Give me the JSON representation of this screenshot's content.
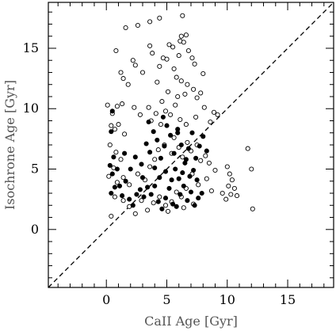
{
  "chart_data": {
    "type": "scatter",
    "xlabel": "CaII Age [Gyr]",
    "ylabel": "Isochrone Age [Gyr]",
    "xlim": [
      -4.8,
      18.8
    ],
    "ylim": [
      -4.8,
      18.8
    ],
    "xticks": [
      0,
      5,
      10,
      15
    ],
    "yticks": [
      0,
      5,
      10,
      15
    ],
    "minor_tick_step": 1,
    "grid": false,
    "legend": "none",
    "reference_line": {
      "style": "dashed",
      "from": [
        -4.8,
        -4.8
      ],
      "to": [
        18.8,
        18.8
      ]
    },
    "series": [
      {
        "marker": "open-circle",
        "points": [
          [
            1.6,
            16.7
          ],
          [
            2.6,
            16.9
          ],
          [
            3.6,
            17.2
          ],
          [
            4.4,
            17.5
          ],
          [
            6.3,
            17.7
          ],
          [
            0.8,
            14.8
          ],
          [
            1.2,
            13.0
          ],
          [
            1.4,
            12.5
          ],
          [
            1.8,
            12.0
          ],
          [
            2.2,
            14.0
          ],
          [
            2.4,
            13.6
          ],
          [
            3.0,
            13.0
          ],
          [
            3.6,
            15.2
          ],
          [
            3.8,
            14.6
          ],
          [
            4.2,
            12.2
          ],
          [
            4.4,
            13.5
          ],
          [
            4.7,
            14.2
          ],
          [
            5.0,
            14.1
          ],
          [
            5.2,
            15.3
          ],
          [
            5.6,
            13.3
          ],
          [
            5.8,
            12.6
          ],
          [
            6.0,
            14.4
          ],
          [
            6.1,
            15.6
          ],
          [
            6.2,
            16.0
          ],
          [
            6.4,
            15.5
          ],
          [
            6.6,
            16.1
          ],
          [
            6.8,
            14.8
          ],
          [
            7.1,
            14.2
          ],
          [
            6.2,
            12.3
          ],
          [
            6.7,
            12.0
          ],
          [
            7.2,
            11.6
          ],
          [
            7.5,
            10.9
          ],
          [
            7.8,
            11.3
          ],
          [
            8.0,
            12.9
          ],
          [
            7.3,
            13.7
          ],
          [
            5.5,
            15.1
          ],
          [
            4.6,
            10.6
          ],
          [
            5.1,
            11.4
          ],
          [
            5.9,
            11.0
          ],
          [
            6.5,
            11.2
          ],
          [
            0.1,
            10.3
          ],
          [
            0.5,
            9.6
          ],
          [
            0.9,
            10.2
          ],
          [
            1.3,
            10.4
          ],
          [
            0.4,
            8.6
          ],
          [
            0.7,
            8.3
          ],
          [
            1.0,
            8.7
          ],
          [
            1.5,
            7.9
          ],
          [
            2.3,
            10.1
          ],
          [
            2.8,
            9.5
          ],
          [
            3.5,
            10.1
          ],
          [
            3.7,
            9.0
          ],
          [
            4.1,
            9.6
          ],
          [
            4.5,
            8.7
          ],
          [
            4.9,
            9.8
          ],
          [
            5.3,
            9.5
          ],
          [
            5.7,
            10.3
          ],
          [
            6.1,
            9.1
          ],
          [
            6.6,
            8.7
          ],
          [
            7.4,
            9.3
          ],
          [
            8.1,
            10.1
          ],
          [
            8.6,
            8.9
          ],
          [
            9.2,
            9.5
          ],
          [
            8.9,
            9.7
          ],
          [
            0.3,
            7.0
          ],
          [
            0.8,
            6.4
          ],
          [
            1.2,
            5.8
          ],
          [
            0.6,
            5.1
          ],
          [
            0.2,
            4.4
          ],
          [
            0.9,
            3.9
          ],
          [
            1.4,
            4.3
          ],
          [
            1.9,
            3.7
          ],
          [
            2.6,
            4.6
          ],
          [
            3.2,
            4.1
          ],
          [
            3.6,
            5.2
          ],
          [
            4.0,
            5.8
          ],
          [
            4.3,
            6.6
          ],
          [
            4.8,
            7.0
          ],
          [
            5.4,
            6.3
          ],
          [
            5.6,
            7.6
          ],
          [
            6.0,
            6.8
          ],
          [
            6.3,
            6.0
          ],
          [
            6.7,
            7.2
          ],
          [
            7.0,
            6.5
          ],
          [
            7.5,
            7.0
          ],
          [
            7.8,
            5.7
          ],
          [
            8.2,
            6.1
          ],
          [
            8.5,
            5.5
          ],
          [
            9.0,
            4.9
          ],
          [
            8.3,
            4.2
          ],
          [
            7.6,
            3.7
          ],
          [
            7.1,
            4.6
          ],
          [
            6.6,
            3.4
          ],
          [
            6.2,
            2.7
          ],
          [
            5.8,
            3.1
          ],
          [
            5.4,
            2.3
          ],
          [
            4.9,
            2.0
          ],
          [
            4.4,
            2.7
          ],
          [
            3.9,
            2.2
          ],
          [
            3.4,
            1.6
          ],
          [
            2.9,
            2.4
          ],
          [
            2.4,
            1.3
          ],
          [
            1.9,
            1.9
          ],
          [
            1.4,
            2.4
          ],
          [
            0.4,
            1.1
          ],
          [
            0.7,
            2.7
          ],
          [
            10.0,
            5.2
          ],
          [
            10.2,
            4.6
          ],
          [
            10.4,
            4.1
          ],
          [
            10.1,
            3.6
          ],
          [
            10.3,
            2.9
          ],
          [
            10.6,
            3.4
          ],
          [
            10.8,
            2.8
          ],
          [
            11.7,
            6.7
          ],
          [
            12.0,
            5.0
          ],
          [
            12.1,
            1.7
          ],
          [
            9.6,
            3.0
          ],
          [
            9.9,
            2.5
          ],
          [
            7.2,
            2.1
          ],
          [
            6.4,
            1.8
          ],
          [
            5.1,
            1.5
          ],
          [
            8.7,
            3.2
          ]
        ]
      },
      {
        "marker": "filled-circle",
        "points": [
          [
            0.5,
            9.8
          ],
          [
            0.4,
            8.1
          ],
          [
            0.6,
            6.0
          ],
          [
            0.3,
            5.3
          ],
          [
            0.9,
            5.0
          ],
          [
            0.5,
            4.6
          ],
          [
            0.7,
            3.5
          ],
          [
            0.4,
            3.0
          ],
          [
            1.1,
            3.6
          ],
          [
            1.3,
            2.8
          ],
          [
            1.6,
            4.0
          ],
          [
            1.9,
            2.5
          ],
          [
            2.2,
            2.0
          ],
          [
            2.5,
            2.9
          ],
          [
            2.8,
            3.3
          ],
          [
            3.1,
            2.7
          ],
          [
            3.4,
            3.5
          ],
          [
            3.7,
            2.9
          ],
          [
            4.0,
            3.6
          ],
          [
            4.3,
            2.3
          ],
          [
            4.6,
            1.7
          ],
          [
            4.9,
            2.6
          ],
          [
            5.2,
            3.4
          ],
          [
            5.5,
            2.1
          ],
          [
            5.8,
            1.9
          ],
          [
            6.1,
            2.9
          ],
          [
            6.4,
            3.6
          ],
          [
            6.7,
            2.4
          ],
          [
            7.0,
            3.1
          ],
          [
            7.3,
            2.0
          ],
          [
            7.6,
            2.6
          ],
          [
            7.9,
            3.0
          ],
          [
            2.0,
            5.0
          ],
          [
            2.4,
            6.0
          ],
          [
            2.9,
            5.4
          ],
          [
            3.3,
            7.1
          ],
          [
            3.6,
            6.4
          ],
          [
            3.9,
            8.1
          ],
          [
            4.2,
            7.4
          ],
          [
            4.5,
            5.9
          ],
          [
            4.8,
            6.9
          ],
          [
            5.0,
            8.6
          ],
          [
            5.3,
            7.8
          ],
          [
            5.6,
            6.3
          ],
          [
            5.9,
            8.3
          ],
          [
            6.2,
            7.0
          ],
          [
            6.5,
            5.5
          ],
          [
            6.8,
            6.7
          ],
          [
            7.1,
            8.0
          ],
          [
            7.4,
            5.9
          ],
          [
            7.7,
            6.9
          ],
          [
            8.0,
            7.7
          ],
          [
            8.3,
            6.5
          ],
          [
            3.5,
            8.9
          ],
          [
            4.7,
            9.3
          ],
          [
            5.9,
            8.0
          ],
          [
            4.0,
            5.1
          ],
          [
            4.4,
            4.3
          ],
          [
            4.9,
            4.8
          ],
          [
            5.4,
            4.1
          ],
          [
            5.7,
            5.0
          ],
          [
            6.0,
            4.2
          ],
          [
            6.3,
            4.7
          ],
          [
            6.6,
            5.8
          ],
          [
            6.9,
            4.4
          ],
          [
            7.2,
            4.9
          ],
          [
            7.5,
            4.1
          ],
          [
            3.0,
            4.3
          ],
          [
            1.5,
            6.3
          ]
        ]
      }
    ]
  }
}
